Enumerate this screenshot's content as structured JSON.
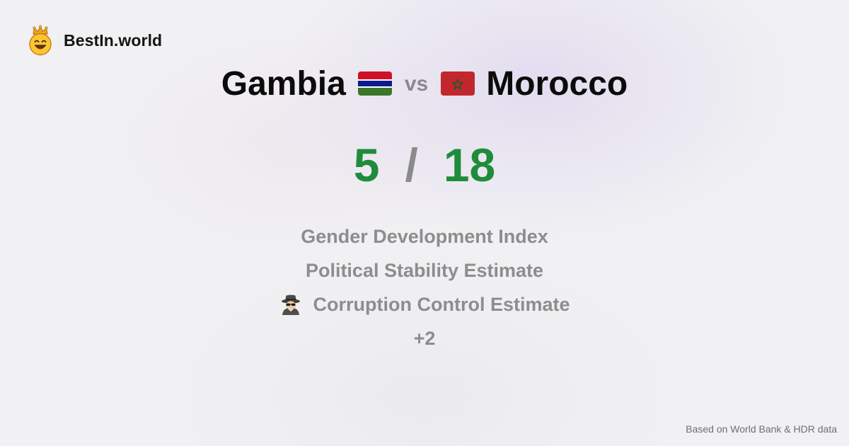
{
  "brand": {
    "name": "BestIn.world",
    "logo_icon": "crown-smiley-icon"
  },
  "comparison": {
    "left_country": "Gambia",
    "left_flag_icon": "gambia-flag-icon",
    "vs_label": "vs",
    "right_country": "Morocco",
    "right_flag_icon": "morocco-flag-icon"
  },
  "score": {
    "left": "5",
    "separator": "/",
    "right": "18"
  },
  "indicators": [
    {
      "label": "Gender Development Index"
    },
    {
      "label": "Political Stability Estimate"
    },
    {
      "label": "Corruption Control Estimate",
      "icon": "spy-detective-icon"
    }
  ],
  "more_count": "+2",
  "footer": {
    "source": "Based on World Bank & HDR data"
  },
  "colors": {
    "score_green": "#1f8c3b",
    "muted_gray": "#8d8d8d",
    "background": "#f1f1f3"
  }
}
